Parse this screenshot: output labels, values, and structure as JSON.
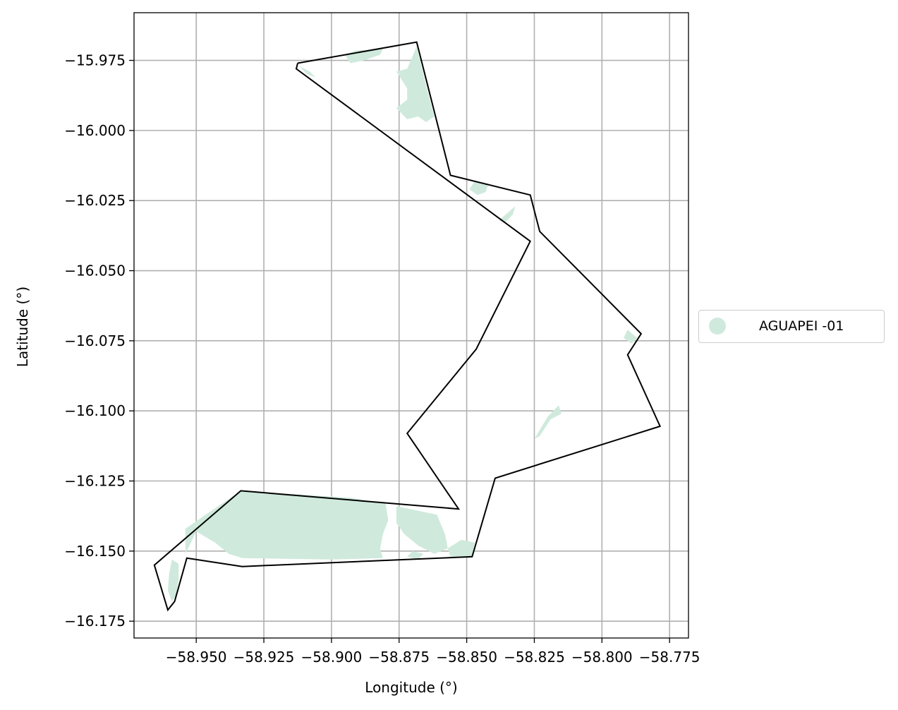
{
  "chart_data": {
    "type": "map",
    "title": "",
    "xlabel": "Longitude (°)",
    "ylabel": "Latitude (°)",
    "xlim": [
      -58.973,
      -58.768
    ],
    "ylim": [
      -16.181,
      -15.958
    ],
    "xticks": [
      -58.95,
      -58.925,
      -58.9,
      -58.875,
      -58.85,
      -58.825,
      -58.8,
      -58.775
    ],
    "xtick_labels": [
      "−58.950",
      "−58.925",
      "−58.900",
      "−58.875",
      "−58.850",
      "−58.825",
      "−58.800",
      "−58.775"
    ],
    "yticks": [
      -15.975,
      -16.0,
      -16.025,
      -16.05,
      -16.075,
      -16.1,
      -16.125,
      -16.15,
      -16.175
    ],
    "ytick_labels": [
      "−15.975",
      "−16.000",
      "−16.025",
      "−16.050",
      "−16.075",
      "−16.100",
      "−16.125",
      "−16.150",
      "−16.175"
    ],
    "grid": true,
    "legend": {
      "placement": "center-right-outside",
      "entries": [
        {
          "label": "AGUAPEI -01",
          "color": "#cfeadc",
          "marker": "circle"
        }
      ]
    },
    "boundary": {
      "color": "#000000",
      "coords": [
        [
          -58.9125,
          -15.976
        ],
        [
          -58.8685,
          -15.9685
        ],
        [
          -58.856,
          -16.016
        ],
        [
          -58.8265,
          -16.023
        ],
        [
          -58.823,
          -16.036
        ],
        [
          -58.7855,
          -16.0725
        ],
        [
          -58.7905,
          -16.08
        ],
        [
          -58.7785,
          -16.1055
        ],
        [
          -58.8395,
          -16.124
        ],
        [
          -58.848,
          -16.152
        ],
        [
          -58.933,
          -16.1555
        ],
        [
          -58.9535,
          -16.1525
        ],
        [
          -58.958,
          -16.168
        ],
        [
          -58.9605,
          -16.171
        ],
        [
          -58.9655,
          -16.155
        ],
        [
          -58.9335,
          -16.1285
        ],
        [
          -58.853,
          -16.135
        ],
        [
          -58.872,
          -16.108
        ],
        [
          -58.8465,
          -16.078
        ],
        [
          -58.8265,
          -16.0395
        ],
        [
          -58.913,
          -15.978
        ],
        [
          -58.9125,
          -15.976
        ]
      ]
    },
    "fill_color": "#cfeadc",
    "fill_patches": [
      [
        [
          -58.954,
          -16.151
        ],
        [
          -58.95,
          -16.143
        ],
        [
          -58.943,
          -16.147
        ],
        [
          -58.938,
          -16.151
        ],
        [
          -58.933,
          -16.1525
        ],
        [
          -58.9,
          -16.153
        ],
        [
          -58.881,
          -16.1525
        ],
        [
          -58.882,
          -16.149
        ],
        [
          -58.881,
          -16.144
        ],
        [
          -58.879,
          -16.139
        ],
        [
          -58.88,
          -16.133
        ],
        [
          -58.893,
          -16.131
        ],
        [
          -58.9335,
          -16.1285
        ],
        [
          -58.954,
          -16.142
        ]
      ],
      [
        [
          -58.9565,
          -16.1545
        ],
        [
          -58.959,
          -16.153
        ],
        [
          -58.96,
          -16.158
        ],
        [
          -58.9605,
          -16.164
        ],
        [
          -58.959,
          -16.168
        ],
        [
          -58.9575,
          -16.166
        ],
        [
          -58.9565,
          -16.16
        ]
      ],
      [
        [
          -58.876,
          -16.134
        ],
        [
          -58.866,
          -16.136
        ],
        [
          -58.861,
          -16.137
        ],
        [
          -58.858,
          -16.144
        ],
        [
          -58.857,
          -16.149
        ],
        [
          -58.862,
          -16.151
        ],
        [
          -58.868,
          -16.148
        ],
        [
          -58.873,
          -16.144
        ],
        [
          -58.876,
          -16.14
        ]
      ],
      [
        [
          -58.857,
          -16.149
        ],
        [
          -58.852,
          -16.146
        ],
        [
          -58.847,
          -16.147
        ],
        [
          -58.848,
          -16.152
        ],
        [
          -58.856,
          -16.152
        ]
      ],
      [
        [
          -58.866,
          -16.151
        ],
        [
          -58.87,
          -16.15
        ],
        [
          -58.872,
          -16.152
        ],
        [
          -58.868,
          -16.153
        ]
      ],
      [
        [
          -58.881,
          -15.971
        ],
        [
          -58.891,
          -15.9715
        ],
        [
          -58.895,
          -15.973
        ],
        [
          -58.893,
          -15.976
        ],
        [
          -58.888,
          -15.975
        ],
        [
          -58.882,
          -15.973
        ]
      ],
      [
        [
          -58.8685,
          -15.97
        ],
        [
          -58.865,
          -15.984
        ],
        [
          -58.862,
          -15.995
        ],
        [
          -58.865,
          -15.997
        ],
        [
          -58.868,
          -15.995
        ],
        [
          -58.872,
          -15.996
        ],
        [
          -58.876,
          -15.992
        ],
        [
          -58.872,
          -15.989
        ],
        [
          -58.872,
          -15.985
        ],
        [
          -58.874,
          -15.982
        ],
        [
          -58.876,
          -15.979
        ],
        [
          -58.872,
          -15.978
        ]
      ],
      [
        [
          -58.912,
          -15.977
        ],
        [
          -58.908,
          -15.979
        ],
        [
          -58.906,
          -15.981
        ],
        [
          -58.909,
          -15.98
        ]
      ],
      [
        [
          -58.847,
          -16.018
        ],
        [
          -58.842,
          -16.019
        ],
        [
          -58.843,
          -16.022
        ],
        [
          -58.846,
          -16.023
        ],
        [
          -58.849,
          -16.021
        ]
      ],
      [
        [
          -58.838,
          -16.032
        ],
        [
          -58.832,
          -16.027
        ],
        [
          -58.833,
          -16.03
        ],
        [
          -58.836,
          -16.033
        ]
      ],
      [
        [
          -58.825,
          -16.11
        ],
        [
          -58.82,
          -16.102
        ],
        [
          -58.816,
          -16.098
        ],
        [
          -58.815,
          -16.101
        ],
        [
          -58.819,
          -16.103
        ],
        [
          -58.823,
          -16.109
        ]
      ],
      [
        [
          -58.7905,
          -16.071
        ],
        [
          -58.787,
          -16.074
        ],
        [
          -58.789,
          -16.076
        ],
        [
          -58.792,
          -16.074
        ]
      ]
    ]
  }
}
